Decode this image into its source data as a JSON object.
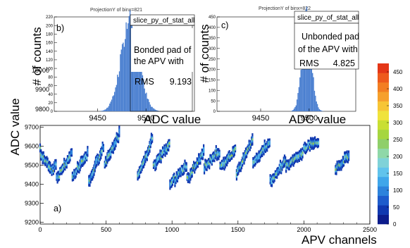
{
  "chart_data": [
    {
      "id": "main",
      "type": "heatmap",
      "panel_label": "a)",
      "xlabel": "APV channels",
      "ylabel": "ADC value",
      "xlim": [
        0,
        2500
      ],
      "ylim": [
        9190,
        9710
      ],
      "x_ticks": [
        0,
        500,
        1000,
        1500,
        2000,
        2500
      ],
      "y_ticks": [
        9200,
        9300,
        9400,
        9500,
        9600,
        9700
      ],
      "colorscale": {
        "label": "",
        "min": 0,
        "max": 475,
        "ticks": [
          0,
          50,
          100,
          150,
          200,
          250,
          300,
          350,
          400,
          450
        ],
        "colors": [
          "#0c1c8c",
          "#1038b0",
          "#1e5ccc",
          "#2d83dc",
          "#3fa6ea",
          "#60c3ec",
          "#7fd2d8",
          "#8fd8a8",
          "#8fcf6a",
          "#a6d640",
          "#c9df33",
          "#f0e33b",
          "#f7c535",
          "#f6a02c",
          "#f37e22",
          "#ee5a1c",
          "#e43617"
        ]
      },
      "groups": [
        {
          "x_start": 0,
          "x_end": 120,
          "y_start": 9560,
          "y_end": 9450,
          "y_final": 9510
        },
        {
          "x_start": 125,
          "x_end": 240,
          "y_start": 9430,
          "y_end": 9560
        },
        {
          "x_start": 245,
          "x_end": 360,
          "y_start": 9440,
          "y_end": 9560
        },
        {
          "x_start": 370,
          "x_end": 480,
          "y_start": 9410,
          "y_end": 9600
        },
        {
          "x_start": 490,
          "x_end": 600,
          "y_start": 9500,
          "y_end": 9670
        },
        {
          "x_start": 740,
          "x_end": 850,
          "y_start": 9440,
          "y_end": 9640
        },
        {
          "x_start": 860,
          "x_end": 980,
          "y_start": 9500,
          "y_end": 9610
        },
        {
          "x_start": 985,
          "x_end": 1110,
          "y_start": 9400,
          "y_end": 9500
        },
        {
          "x_start": 1115,
          "x_end": 1240,
          "y_start": 9430,
          "y_end": 9570
        },
        {
          "x_start": 1245,
          "x_end": 1360,
          "y_start": 9490,
          "y_end": 9570
        },
        {
          "x_start": 1365,
          "x_end": 1480,
          "y_start": 9490,
          "y_end": 9580
        },
        {
          "x_start": 1490,
          "x_end": 1610,
          "y_start": 9460,
          "y_end": 9630
        },
        {
          "x_start": 1615,
          "x_end": 1740,
          "y_start": 9510,
          "y_end": 9620
        },
        {
          "x_start": 1745,
          "x_end": 1860,
          "y_start": 9410,
          "y_end": 9520
        },
        {
          "x_start": 1865,
          "x_end": 1990,
          "y_start": 9490,
          "y_end": 9570
        },
        {
          "x_start": 2000,
          "x_end": 2110,
          "y_start": 9590,
          "y_end": 9620
        },
        {
          "x_start": 2240,
          "x_end": 2340,
          "y_start": 9470,
          "y_end": 9560
        }
      ],
      "inner_fragment": {
        "y_ticks_visible": [
          9800,
          9900,
          10000
        ],
        "tick_label_fragment": "10000"
      }
    },
    {
      "id": "inset_b",
      "type": "bar",
      "panel_label": "b)",
      "title": "ProjectionY of binx=821",
      "stats_name": "slice_py_of_stat_all",
      "note_line1": "Bonded pad of",
      "note_line2": "the APV with",
      "rms_label": "RMS",
      "rms_value": "9.193",
      "xlabel": "ADC value",
      "ylabel": "# of counts",
      "xlim": [
        9405,
        9548
      ],
      "ylim": [
        0,
        220
      ],
      "x_ticks": [
        9450,
        9500
      ],
      "y_ticks": [
        0,
        20,
        40,
        60,
        80,
        100,
        120,
        140,
        160,
        180,
        200,
        220
      ],
      "mean": 9483,
      "sigma": 9.193,
      "peak": 215,
      "bar_color": "#4a7fd0"
    },
    {
      "id": "inset_c",
      "type": "bar",
      "panel_label": "c)",
      "title": "ProjectionY of binx=822",
      "stats_name": "slice_py_of_stat_all",
      "note_line1": "Unbonded pad",
      "note_line2": "of the APV with",
      "rms_label": "RMS",
      "rms_value": "4.825",
      "xlabel": "ADC value",
      "ylabel": "# of counts",
      "xlim": [
        9405,
        9548
      ],
      "ylim": [
        0,
        450
      ],
      "x_ticks": [
        9450,
        9500
      ],
      "y_ticks": [
        0,
        50,
        100,
        150,
        200,
        250,
        300,
        350,
        400,
        450
      ],
      "mean": 9497,
      "sigma": 4.825,
      "peak": 440,
      "bar_color": "#4a7fd0"
    }
  ]
}
